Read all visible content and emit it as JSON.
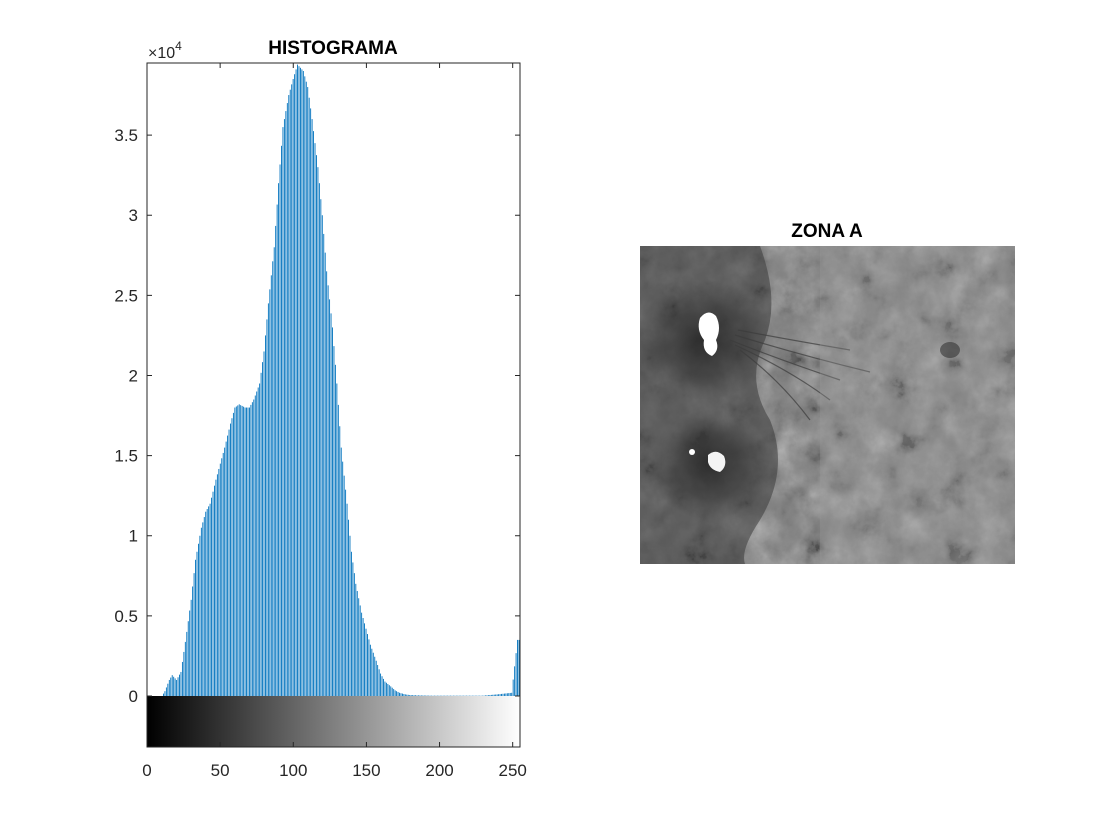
{
  "chart_data": [
    {
      "type": "bar",
      "title": "HISTOGRAMA",
      "xlabel": "",
      "ylabel": "",
      "xlim": [
        0,
        255
      ],
      "ylim": [
        0,
        39500
      ],
      "y_multiplier_label": "×10",
      "y_multiplier_exponent": "4",
      "xticks": [
        0,
        50,
        100,
        150,
        200,
        250
      ],
      "xtick_labels": [
        "0",
        "50",
        "100",
        "150",
        "200",
        "250"
      ],
      "yticks": [
        0,
        5000,
        10000,
        15000,
        20000,
        25000,
        30000,
        35000
      ],
      "ytick_labels": [
        "0",
        "0.5",
        "1",
        "1.5",
        "2",
        "2.5",
        "3",
        "3.5"
      ],
      "grid": false,
      "colorbar_below": "grayscale 0-255",
      "bar_color": "#0072BD",
      "x_points": [
        0,
        10,
        12,
        15,
        17,
        20,
        23,
        27,
        30,
        33,
        37,
        40,
        43,
        47,
        50,
        53,
        57,
        60,
        63,
        67,
        70,
        73,
        77,
        80,
        83,
        87,
        90,
        93,
        97,
        100,
        103,
        107,
        110,
        113,
        117,
        120,
        123,
        127,
        130,
        133,
        137,
        140,
        143,
        147,
        150,
        153,
        157,
        160,
        163,
        167,
        170,
        173,
        177,
        180,
        185,
        190,
        195,
        200,
        210,
        220,
        230,
        240,
        250,
        254,
        255
      ],
      "y_points": [
        0,
        0,
        300,
        1000,
        1300,
        1000,
        1500,
        4000,
        6000,
        8500,
        10500,
        11500,
        12000,
        13500,
        14500,
        15500,
        17000,
        18000,
        18200,
        18000,
        18000,
        18500,
        19500,
        21500,
        24500,
        28000,
        32000,
        35500,
        37500,
        38500,
        39400,
        39000,
        38000,
        36000,
        33000,
        30000,
        26500,
        23000,
        19500,
        15500,
        12000,
        9000,
        7000,
        5200,
        4200,
        3200,
        2200,
        1400,
        900,
        600,
        350,
        200,
        100,
        60,
        40,
        30,
        20,
        20,
        20,
        20,
        20,
        100,
        200,
        3500,
        3500
      ]
    },
    {
      "type": "image",
      "title": "ZONA A",
      "colormap": "gray"
    }
  ]
}
